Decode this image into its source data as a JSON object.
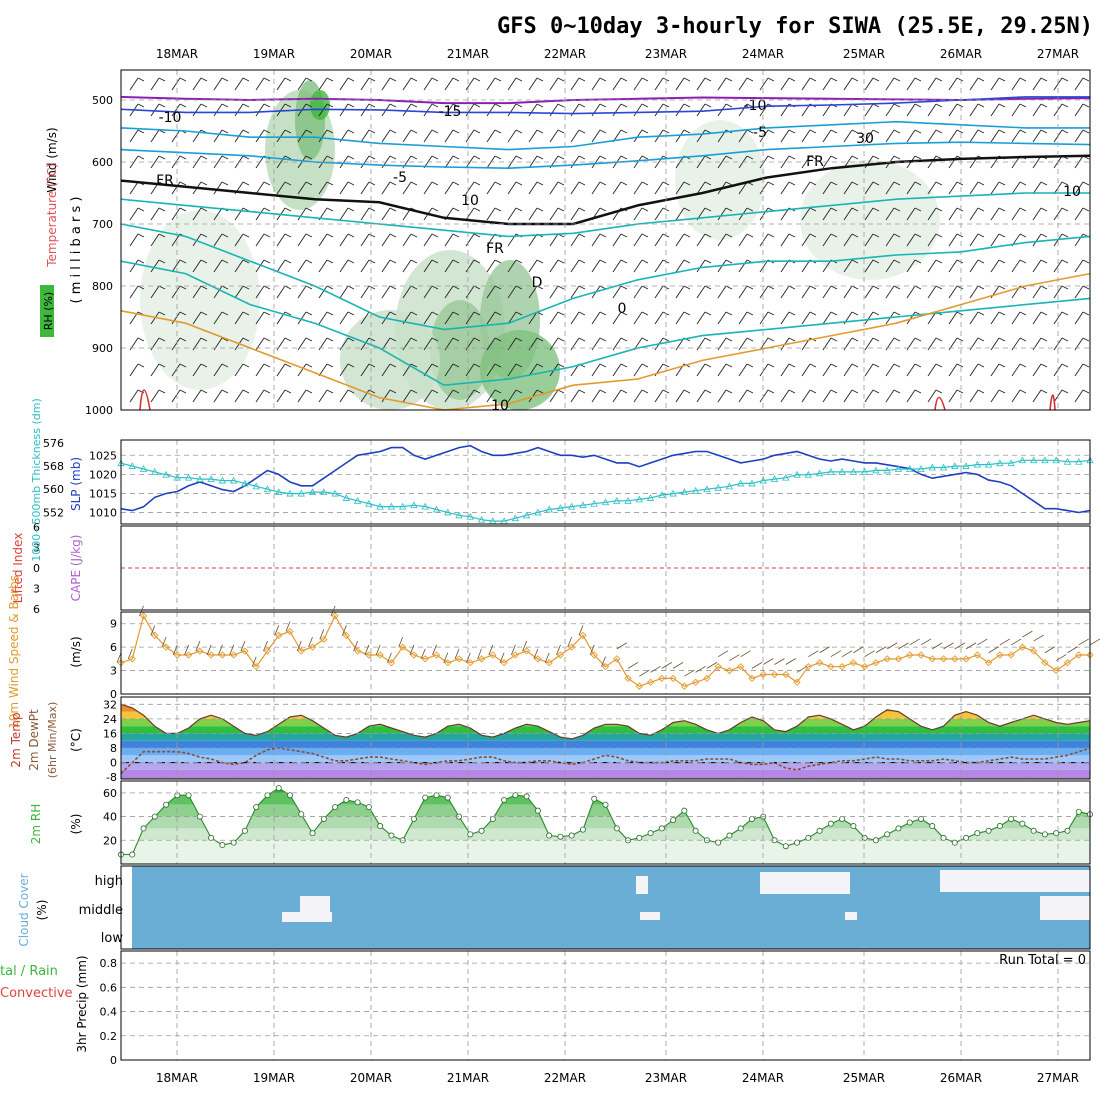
{
  "title": "GFS 0~10day 3-hourly for SIWA (25.5E, 29.25N)",
  "dates": [
    "18MAR",
    "19MAR",
    "20MAR",
    "21MAR",
    "22MAR",
    "23MAR",
    "24MAR",
    "25MAR",
    "26MAR",
    "27MAR"
  ],
  "labels": {
    "upper_wind": "Wind (m/s)",
    "upper_temp": "Temperature (°C)",
    "upper_rh": "RH (%)",
    "upper_mb": "( m i l l i b a r s )",
    "thick": "1000~500mb Thickness (dm)",
    "slp": "SLP (mb)",
    "li": "Lifted Index",
    "cape": "CAPE (J/kg)",
    "wind10": "10m Wind Speed & Barbs",
    "wind10_units": "(m/s)",
    "temp2m": "2m Temp",
    "dewpt2m": "2m DewPt",
    "temp2m_note": "(6hr Min/Max)",
    "temp_units": "(°C)",
    "rh2m": "2m RH",
    "rh_units": "(%)",
    "cloud": "Cloud Cover",
    "cloud_units": "(%)",
    "precip_left": "tal / Rain",
    "precip_conv": "Convective",
    "precip_axis": "3hr Precip (mm)",
    "run_total": "Run Total = 0"
  },
  "colors": {
    "slp": "#1f3fbf",
    "thickness": "#2bbfc6",
    "wind10": "#e39a2d",
    "rh_green": "#3db83d",
    "cloud": "#6aaed6",
    "cloud_gap": "#f4f4f8",
    "li_line": "#e04040",
    "contour_purple": "#8a1fb0",
    "contour_blue": "#2a46d6",
    "contour_cyan": "#1a9ed6",
    "contour_teal": "#19b4b4",
    "contour_orange": "#e39a2d"
  },
  "chart_data": [
    {
      "type": "contour",
      "title": "upper-air cross-section",
      "ylabel": "millibars",
      "yticks": [
        500,
        600,
        700,
        800,
        900,
        1000
      ],
      "ylim": [
        1000,
        450
      ],
      "contour_labels": [
        "-10",
        "-15",
        "-10",
        "-5",
        "-5",
        "FR",
        "FR",
        "FR",
        "10",
        "10",
        "30",
        "10",
        "0",
        "D"
      ]
    },
    {
      "type": "line",
      "title": "SLP and 1000~500mb thickness",
      "x_days": 10,
      "yticks_left": [
        552,
        560,
        568,
        576
      ],
      "yticks_right": [
        1010,
        1015,
        1020,
        1025
      ],
      "series": [
        {
          "name": "SLP (mb)",
          "axis": "right",
          "values": [
            1011,
            1010.5,
            1011.5,
            1014,
            1015,
            1015.5,
            1017,
            1018,
            1017,
            1016,
            1015.5,
            1017,
            1019,
            1021,
            1020,
            1018,
            1017,
            1017,
            1019,
            1021,
            1023,
            1025,
            1025.5,
            1026,
            1027,
            1027,
            1025,
            1024,
            1025,
            1026,
            1027,
            1027.5,
            1026,
            1025,
            1025,
            1025.5,
            1026,
            1027,
            1026,
            1025,
            1025,
            1024.5,
            1025,
            1024,
            1023,
            1023,
            1022,
            1023,
            1024,
            1025,
            1025.5,
            1026,
            1026,
            1025,
            1024,
            1023,
            1023.5,
            1024,
            1025,
            1025.5,
            1026,
            1025,
            1024,
            1023.5,
            1024,
            1023.5,
            1023,
            1023,
            1022.5,
            1022,
            1021.5,
            1020,
            1019,
            1019.5,
            1020,
            1020.5,
            1020,
            1018.5,
            1018,
            1017,
            1015,
            1013,
            1011,
            1011,
            1010.5,
            1010,
            1010.5
          ]
        },
        {
          "name": "1000~500mb Thickness (dm)",
          "axis": "left",
          "values": [
            569,
            568,
            567,
            566,
            565,
            564,
            564,
            563.5,
            563.5,
            563,
            563,
            562,
            561,
            560,
            559,
            558.5,
            558.5,
            559,
            559,
            558.5,
            557,
            556,
            555,
            554,
            554,
            554,
            554.5,
            554,
            553,
            552,
            551,
            550.5,
            549.5,
            549,
            549,
            550,
            551,
            552,
            553,
            553.5,
            554,
            554.5,
            555,
            555.5,
            556,
            556,
            556.5,
            557,
            558,
            558.5,
            559,
            559.5,
            560,
            560.5,
            561,
            562,
            562,
            563,
            563.5,
            564,
            565,
            565,
            565.5,
            566,
            566,
            566,
            566,
            566.5,
            566.5,
            567,
            567,
            567,
            567.5,
            567.5,
            568,
            568,
            568.5,
            568.5,
            569,
            569,
            570,
            570,
            570,
            570,
            569.5,
            569.5,
            570
          ]
        }
      ]
    },
    {
      "type": "line",
      "title": "Lifted Index / CAPE",
      "yticks": [
        6,
        3,
        0,
        -3,
        -6
      ],
      "ylim": [
        -6,
        6
      ],
      "series": [
        {
          "name": "Lifted Index",
          "values": [
            0
          ]
        }
      ]
    },
    {
      "type": "line",
      "title": "10m Wind Speed & Barbs",
      "yticks": [
        0,
        3,
        6,
        9
      ],
      "ylim": [
        0,
        10
      ],
      "series": [
        {
          "name": "10m Wind Speed",
          "values": [
            4,
            4.5,
            10,
            7.5,
            6,
            5,
            5,
            5.5,
            5,
            5,
            5,
            5.5,
            3.5,
            5.5,
            7.5,
            8,
            5.5,
            6,
            7,
            10,
            7.5,
            5.5,
            5,
            5,
            4,
            6,
            5,
            4.5,
            5,
            4,
            4.5,
            4,
            4.5,
            5,
            4,
            5,
            5.5,
            4.5,
            4,
            5,
            6,
            7.5,
            5,
            3.5,
            4.5,
            2,
            1,
            1.5,
            2,
            2,
            1,
            1.5,
            2,
            3.5,
            3,
            3.5,
            2,
            2.5,
            2.5,
            2.5,
            1.5,
            3.5,
            4,
            3.5,
            3.5,
            4,
            3.5,
            4,
            4.5,
            4.5,
            5,
            5,
            4.5,
            4.5,
            4.5,
            4.5,
            5,
            4,
            5,
            5,
            6,
            5.5,
            4,
            3,
            4,
            5,
            5
          ]
        }
      ]
    },
    {
      "type": "area",
      "title": "2m Temp / 2m DewPt",
      "yticks": [
        -8,
        0,
        8,
        16,
        24,
        32
      ],
      "ylim": [
        -8,
        36
      ],
      "series": [
        {
          "name": "2m Temp",
          "values": [
            32,
            30,
            26,
            20,
            16,
            16,
            19,
            24,
            26,
            24,
            20,
            16,
            15,
            17,
            21,
            25,
            26,
            23,
            19,
            15,
            14,
            16,
            20,
            21,
            19,
            17,
            15,
            14,
            16,
            20,
            21,
            19,
            15,
            14,
            16,
            19,
            21,
            20,
            17,
            14,
            13,
            15,
            19,
            21,
            21,
            20,
            16,
            15,
            18,
            22,
            23,
            21,
            18,
            16,
            18,
            22,
            25,
            23,
            18,
            17,
            20,
            25,
            26,
            24,
            21,
            18,
            20,
            25,
            29,
            28,
            24,
            20,
            18,
            20,
            26,
            28,
            26,
            22,
            20,
            22,
            24,
            26,
            24,
            22,
            21,
            22,
            23
          ]
        },
        {
          "name": "2m DewPt",
          "values": [
            -6,
            0,
            6,
            6,
            6,
            6,
            5,
            3,
            2,
            0,
            -1,
            0,
            4,
            7,
            8,
            7,
            6,
            5,
            3,
            1,
            1,
            2,
            3,
            3,
            2,
            1,
            0,
            -1,
            0,
            1,
            1,
            2,
            3,
            3,
            1,
            0,
            0,
            1,
            1,
            0,
            -1,
            0,
            2,
            4,
            3,
            1,
            0,
            0,
            0,
            1,
            1,
            1,
            2,
            2,
            2,
            0,
            -1,
            -1,
            0,
            -3,
            -4,
            -2,
            -1,
            0,
            1,
            1,
            2,
            3,
            2,
            2,
            1,
            1,
            1,
            2,
            1,
            0,
            0,
            1,
            2,
            3,
            2,
            2,
            2,
            3,
            4,
            6,
            8
          ]
        }
      ]
    },
    {
      "type": "area",
      "title": "2m RH",
      "yticks": [
        20,
        40,
        60
      ],
      "ylim": [
        0,
        70
      ],
      "series": [
        {
          "name": "2m RH",
          "values": [
            8,
            8,
            30,
            40,
            50,
            58,
            58,
            40,
            22,
            16,
            18,
            28,
            48,
            58,
            64,
            58,
            42,
            26,
            38,
            48,
            54,
            52,
            48,
            32,
            24,
            20,
            38,
            56,
            58,
            56,
            40,
            25,
            28,
            38,
            54,
            58,
            57,
            45,
            24,
            23,
            24,
            29,
            55,
            50,
            30,
            20,
            22,
            26,
            30,
            37,
            45,
            28,
            20,
            18,
            24,
            30,
            38,
            40,
            20,
            15,
            18,
            22,
            28,
            34,
            38,
            32,
            22,
            20,
            25,
            30,
            35,
            38,
            32,
            22,
            18,
            22,
            26,
            28,
            32,
            38,
            34,
            28,
            25,
            26,
            28,
            44,
            42
          ]
        }
      ]
    },
    {
      "type": "heatmap",
      "title": "Cloud Cover",
      "categories": [
        "high",
        "middle",
        "low"
      ]
    },
    {
      "type": "bar",
      "title": "3hr Precip (mm)",
      "yticks": [
        0,
        0.2,
        0.4,
        0.6,
        0.8
      ],
      "ylim": [
        0,
        0.9
      ],
      "values": [
        0
      ],
      "annotation": "Run Total = 0"
    }
  ]
}
